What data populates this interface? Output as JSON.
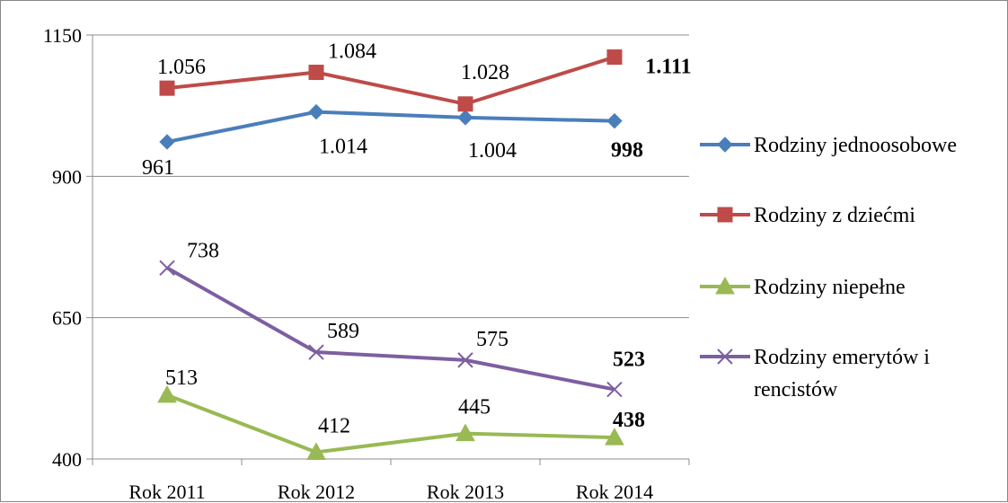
{
  "chart_data": {
    "type": "line",
    "categories": [
      "Rok 2011",
      "Rok 2012",
      "Rok 2013",
      "Rok 2014"
    ],
    "ylim": [
      400,
      1150
    ],
    "yticks": [
      "400",
      "650",
      "900",
      "1150"
    ],
    "grid": true,
    "legend_position": "right",
    "series": [
      {
        "name": "Rodziny jednoosobowe",
        "values": [
          961,
          1014,
          1004,
          998
        ],
        "labels": [
          "961",
          "1.014",
          "1.004",
          "998"
        ],
        "color": "#4A7EBB",
        "marker": "diamond"
      },
      {
        "name": "Rodziny z dziećmi",
        "values": [
          1056,
          1084,
          1028,
          1111
        ],
        "labels": [
          "1.056",
          "1.084",
          "1.028",
          "1.111"
        ],
        "color": "#BE4B48",
        "marker": "square"
      },
      {
        "name": "Rodziny niepełne",
        "values": [
          513,
          412,
          445,
          438
        ],
        "labels": [
          "513",
          "412",
          "445",
          "438"
        ],
        "color": "#98B954",
        "marker": "triangle"
      },
      {
        "name": "Rodziny emerytów i rencistów",
        "name_lines": [
          "Rodziny emerytów i",
          "rencistów"
        ],
        "values": [
          738,
          589,
          575,
          523
        ],
        "labels": [
          "738",
          "589",
          "575",
          "523"
        ],
        "color": "#7D5FA0",
        "marker": "x"
      }
    ]
  }
}
